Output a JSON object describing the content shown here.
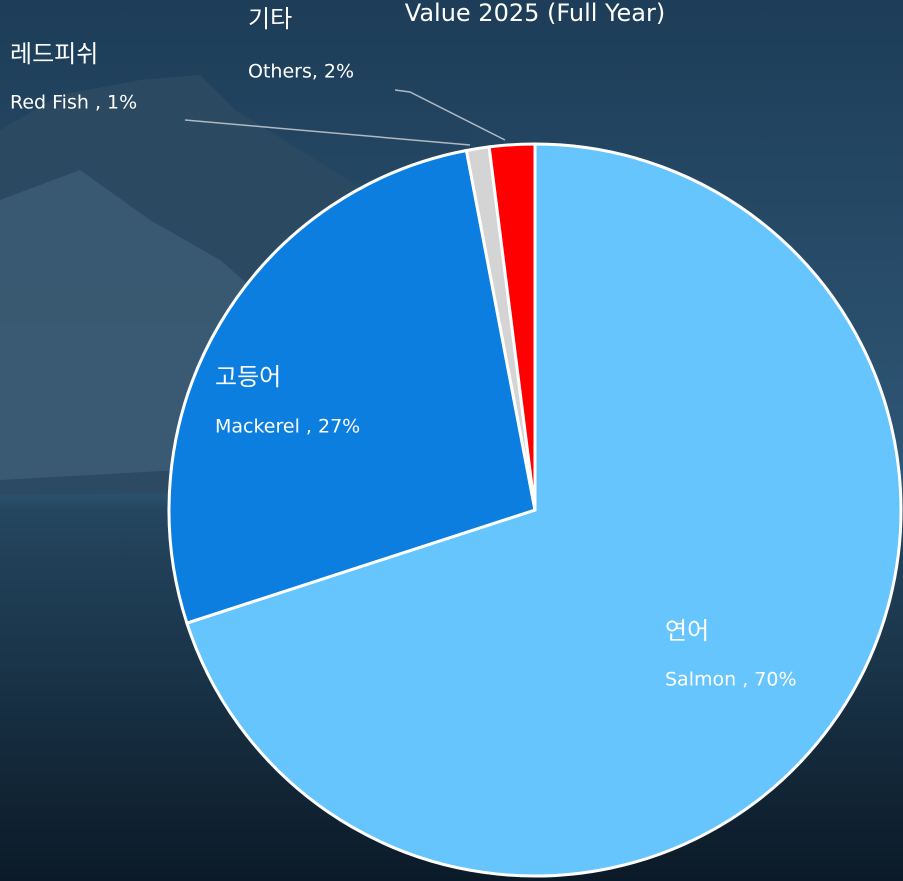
{
  "chart_data": {
    "type": "pie",
    "title": "Value 2025 (Full Year)",
    "categories": [
      "연어",
      "고등어",
      "레드피쉬",
      "기타"
    ],
    "values": [
      70,
      27,
      1,
      2
    ],
    "value_labels": [
      "Salmon , 70%",
      "Mackerel , 27%",
      "Red Fish , 1%",
      "Others, 2%"
    ],
    "colors": [
      "#66c5fd",
      "#0b7ee0",
      "#d4d4d4",
      "#ff0000"
    ]
  }
}
